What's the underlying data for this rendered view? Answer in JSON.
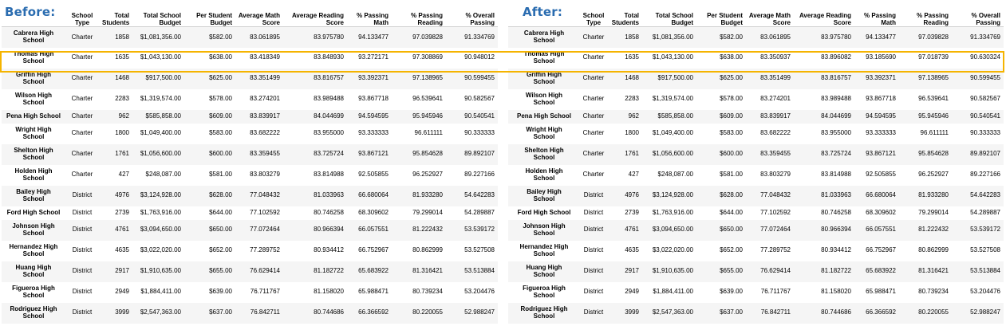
{
  "before": {
    "title": "Before:",
    "headers": [
      "",
      "School\nType",
      "Total\nStudents",
      "Total School\nBudget",
      "Per Student\nBudget",
      "Average Math\nScore",
      "Average Reading\nScore",
      "% Passing\nMath",
      "% Passing\nReading",
      "% Overall\nPassing"
    ],
    "rows": [
      [
        "Cabrera High School",
        "Charter",
        "1858",
        "$1,081,356.00",
        "$582.00",
        "83.061895",
        "83.975780",
        "94.133477",
        "97.039828",
        "91.334769"
      ],
      [
        "Thomas High School",
        "Charter",
        "1635",
        "$1,043,130.00",
        "$638.00",
        "83.418349",
        "83.848930",
        "93.272171",
        "97.308869",
        "90.948012"
      ],
      [
        "Griffin High School",
        "Charter",
        "1468",
        "$917,500.00",
        "$625.00",
        "83.351499",
        "83.816757",
        "93.392371",
        "97.138965",
        "90.599455"
      ],
      [
        "Wilson High School",
        "Charter",
        "2283",
        "$1,319,574.00",
        "$578.00",
        "83.274201",
        "83.989488",
        "93.867718",
        "96.539641",
        "90.582567"
      ],
      [
        "Pena High School",
        "Charter",
        "962",
        "$585,858.00",
        "$609.00",
        "83.839917",
        "84.044699",
        "94.594595",
        "95.945946",
        "90.540541"
      ],
      [
        "Wright High School",
        "Charter",
        "1800",
        "$1,049,400.00",
        "$583.00",
        "83.682222",
        "83.955000",
        "93.333333",
        "96.611111",
        "90.333333"
      ],
      [
        "Shelton High School",
        "Charter",
        "1761",
        "$1,056,600.00",
        "$600.00",
        "83.359455",
        "83.725724",
        "93.867121",
        "95.854628",
        "89.892107"
      ],
      [
        "Holden High School",
        "Charter",
        "427",
        "$248,087.00",
        "$581.00",
        "83.803279",
        "83.814988",
        "92.505855",
        "96.252927",
        "89.227166"
      ],
      [
        "Bailey High School",
        "District",
        "4976",
        "$3,124,928.00",
        "$628.00",
        "77.048432",
        "81.033963",
        "66.680064",
        "81.933280",
        "54.642283"
      ],
      [
        "Ford High School",
        "District",
        "2739",
        "$1,763,916.00",
        "$644.00",
        "77.102592",
        "80.746258",
        "68.309602",
        "79.299014",
        "54.289887"
      ],
      [
        "Johnson High School",
        "District",
        "4761",
        "$3,094,650.00",
        "$650.00",
        "77.072464",
        "80.966394",
        "66.057551",
        "81.222432",
        "53.539172"
      ],
      [
        "Hernandez High School",
        "District",
        "4635",
        "$3,022,020.00",
        "$652.00",
        "77.289752",
        "80.934412",
        "66.752967",
        "80.862999",
        "53.527508"
      ],
      [
        "Huang High School",
        "District",
        "2917",
        "$1,910,635.00",
        "$655.00",
        "76.629414",
        "81.182722",
        "65.683922",
        "81.316421",
        "53.513884"
      ],
      [
        "Figueroa High School",
        "District",
        "2949",
        "$1,884,411.00",
        "$639.00",
        "76.711767",
        "81.158020",
        "65.988471",
        "80.739234",
        "53.204476"
      ],
      [
        "Rodriguez High School",
        "District",
        "3999",
        "$2,547,363.00",
        "$637.00",
        "76.842711",
        "80.744686",
        "66.366592",
        "80.220055",
        "52.988247"
      ]
    ]
  },
  "after": {
    "title": "After:",
    "headers": [
      "",
      "School\nType",
      "Total\nStudents",
      "Total School\nBudget",
      "Per Student\nBudget",
      "Average Math\nScore",
      "Average Reading\nScore",
      "% Passing\nMath",
      "% Passing\nReading",
      "% Overall\nPassing"
    ],
    "rows": [
      [
        "Cabrera High School",
        "Charter",
        "1858",
        "$1,081,356.00",
        "$582.00",
        "83.061895",
        "83.975780",
        "94.133477",
        "97.039828",
        "91.334769"
      ],
      [
        "Thomas High School",
        "Charter",
        "1635",
        "$1,043,130.00",
        "$638.00",
        "83.350937",
        "83.896082",
        "93.185690",
        "97.018739",
        "90.630324"
      ],
      [
        "Griffin High School",
        "Charter",
        "1468",
        "$917,500.00",
        "$625.00",
        "83.351499",
        "83.816757",
        "93.392371",
        "97.138965",
        "90.599455"
      ],
      [
        "Wilson High School",
        "Charter",
        "2283",
        "$1,319,574.00",
        "$578.00",
        "83.274201",
        "83.989488",
        "93.867718",
        "96.539641",
        "90.582567"
      ],
      [
        "Pena High School",
        "Charter",
        "962",
        "$585,858.00",
        "$609.00",
        "83.839917",
        "84.044699",
        "94.594595",
        "95.945946",
        "90.540541"
      ],
      [
        "Wright High School",
        "Charter",
        "1800",
        "$1,049,400.00",
        "$583.00",
        "83.682222",
        "83.955000",
        "93.333333",
        "96.611111",
        "90.333333"
      ],
      [
        "Shelton High School",
        "Charter",
        "1761",
        "$1,056,600.00",
        "$600.00",
        "83.359455",
        "83.725724",
        "93.867121",
        "95.854628",
        "89.892107"
      ],
      [
        "Holden High School",
        "Charter",
        "427",
        "$248,087.00",
        "$581.00",
        "83.803279",
        "83.814988",
        "92.505855",
        "96.252927",
        "89.227166"
      ],
      [
        "Bailey High School",
        "District",
        "4976",
        "$3,124,928.00",
        "$628.00",
        "77.048432",
        "81.033963",
        "66.680064",
        "81.933280",
        "54.642283"
      ],
      [
        "Ford High School",
        "District",
        "2739",
        "$1,763,916.00",
        "$644.00",
        "77.102592",
        "80.746258",
        "68.309602",
        "79.299014",
        "54.289887"
      ],
      [
        "Johnson High School",
        "District",
        "4761",
        "$3,094,650.00",
        "$650.00",
        "77.072464",
        "80.966394",
        "66.057551",
        "81.222432",
        "53.539172"
      ],
      [
        "Hernandez High School",
        "District",
        "4635",
        "$3,022,020.00",
        "$652.00",
        "77.289752",
        "80.934412",
        "66.752967",
        "80.862999",
        "53.527508"
      ],
      [
        "Huang High School",
        "District",
        "2917",
        "$1,910,635.00",
        "$655.00",
        "76.629414",
        "81.182722",
        "65.683922",
        "81.316421",
        "53.513884"
      ],
      [
        "Figueroa High School",
        "District",
        "2949",
        "$1,884,411.00",
        "$639.00",
        "76.711767",
        "81.158020",
        "65.988471",
        "80.739234",
        "53.204476"
      ],
      [
        "Rodriguez High School",
        "District",
        "3999",
        "$2,547,363.00",
        "$637.00",
        "76.842711",
        "80.744686",
        "66.366592",
        "80.220055",
        "52.988247"
      ]
    ]
  },
  "colors": {
    "title_blue": "#2a6cb0",
    "highlight_outline": "#f5b400",
    "row_stripe": "#f5f5f5"
  }
}
